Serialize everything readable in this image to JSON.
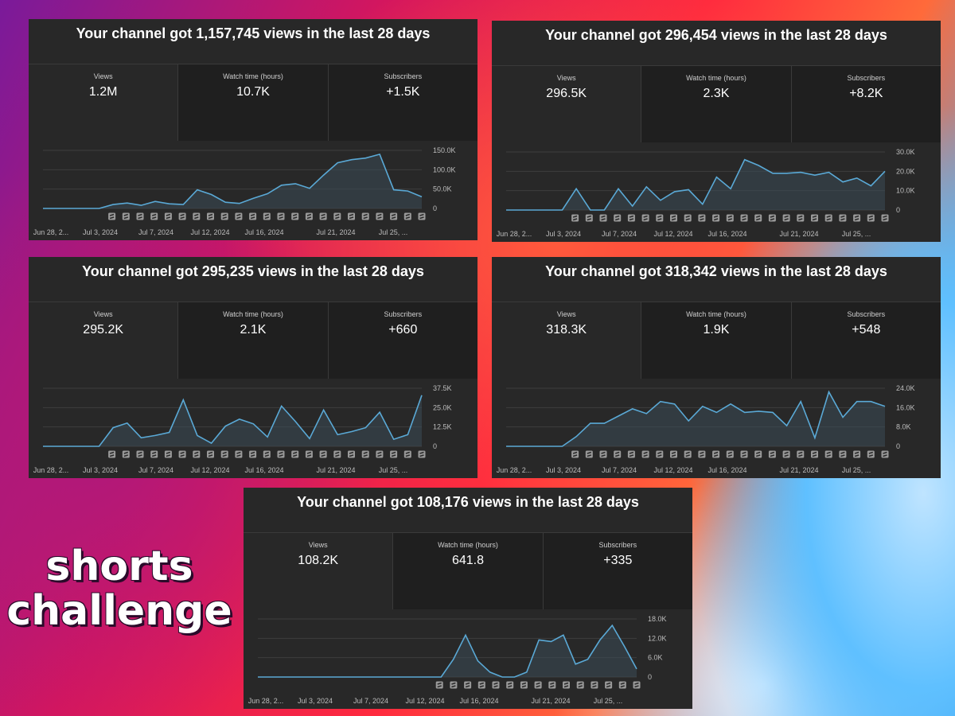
{
  "panels": [
    {
      "title": "Your channel got 1,157,745 views in the last 28 days",
      "metrics": [
        {
          "label": "Views",
          "value": "1.2M"
        },
        {
          "label": "Watch time (hours)",
          "value": "10.7K"
        },
        {
          "label": "Subscribers",
          "value": "+1.5K"
        }
      ]
    },
    {
      "title": "Your channel got 296,454 views in the last 28 days",
      "metrics": [
        {
          "label": "Views",
          "value": "296.5K"
        },
        {
          "label": "Watch time (hours)",
          "value": "2.3K"
        },
        {
          "label": "Subscribers",
          "value": "+8.2K"
        }
      ]
    },
    {
      "title": "Your channel got 295,235 views in the last 28 days",
      "metrics": [
        {
          "label": "Views",
          "value": "295.2K"
        },
        {
          "label": "Watch time (hours)",
          "value": "2.1K"
        },
        {
          "label": "Subscribers",
          "value": "+660"
        }
      ]
    },
    {
      "title": "Your channel got 318,342 views in the last 28 days",
      "metrics": [
        {
          "label": "Views",
          "value": "318.3K"
        },
        {
          "label": "Watch time (hours)",
          "value": "1.9K"
        },
        {
          "label": "Subscribers",
          "value": "+548"
        }
      ]
    },
    {
      "title": "Your channel got 108,176 views in the last 28 days",
      "metrics": [
        {
          "label": "Views",
          "value": "108.2K"
        },
        {
          "label": "Watch time (hours)",
          "value": "641.8"
        },
        {
          "label": "Subscribers",
          "value": "+335"
        }
      ]
    }
  ],
  "caption": {
    "line1": "shorts",
    "line2": "challenge"
  },
  "colors": {
    "line": "#5aa9d6",
    "panel_bg": "#282828",
    "grid": "#3e3e3e"
  },
  "chart_data": [
    {
      "type": "area",
      "x_ticks": [
        "Jun 28, 2...",
        "Jul 3, 2024",
        "Jul 7, 2024",
        "Jul 12, 2024",
        "Jul 16, 2024",
        "Jul 21, 2024",
        "Jul 25, ..."
      ],
      "y_ticks": [
        "150.0K",
        "100.0K",
        "50.0K",
        "0"
      ],
      "ylim": [
        0,
        150000
      ],
      "values": [
        0,
        0,
        0,
        0,
        0,
        10000,
        14000,
        8000,
        18000,
        12000,
        10000,
        48000,
        36000,
        16000,
        13000,
        26000,
        38000,
        60000,
        64000,
        52000,
        86000,
        118000,
        126000,
        130000,
        140000,
        48000,
        45000,
        30000
      ],
      "markers": 23
    },
    {
      "type": "area",
      "x_ticks": [
        "Jun 28, 2...",
        "Jul 3, 2024",
        "Jul 7, 2024",
        "Jul 12, 2024",
        "Jul 16, 2024",
        "Jul 21, 2024",
        "Jul 25, ..."
      ],
      "y_ticks": [
        "30.0K",
        "20.0K",
        "10.0K",
        "0"
      ],
      "ylim": [
        0,
        30000
      ],
      "values": [
        0,
        0,
        0,
        0,
        0,
        11000,
        0,
        0,
        11000,
        2000,
        12000,
        5000,
        9500,
        10500,
        3000,
        17000,
        11000,
        26000,
        23000,
        19000,
        19000,
        19500,
        18000,
        19500,
        14500,
        16500,
        12500,
        20000
      ],
      "markers": 23
    },
    {
      "type": "area",
      "x_ticks": [
        "Jun 28, 2...",
        "Jul 3, 2024",
        "Jul 7, 2024",
        "Jul 12, 2024",
        "Jul 16, 2024",
        "Jul 21, 2024",
        "Jul 25, ..."
      ],
      "y_ticks": [
        "37.5K",
        "25.0K",
        "12.5K",
        "0"
      ],
      "ylim": [
        0,
        37500
      ],
      "values": [
        0,
        0,
        0,
        0,
        0,
        12000,
        15000,
        5500,
        7000,
        9000,
        30000,
        7000,
        2000,
        13000,
        17500,
        14500,
        6000,
        26000,
        16000,
        5000,
        23500,
        7500,
        9500,
        12000,
        22000,
        4500,
        7500,
        33000
      ],
      "markers": 23
    },
    {
      "type": "area",
      "x_ticks": [
        "Jun 28, 2...",
        "Jul 3, 2024",
        "Jul 7, 2024",
        "Jul 12, 2024",
        "Jul 16, 2024",
        "Jul 21, 2024",
        "Jul 25, ..."
      ],
      "y_ticks": [
        "24.0K",
        "16.0K",
        "8.0K",
        "0"
      ],
      "ylim": [
        0,
        24000
      ],
      "values": [
        0,
        0,
        0,
        0,
        0,
        4000,
        9500,
        9500,
        12500,
        15500,
        13500,
        18500,
        17500,
        10500,
        16500,
        14000,
        17500,
        14000,
        14500,
        14000,
        8500,
        18500,
        3500,
        22500,
        12000,
        18500,
        18500,
        16500
      ],
      "markers": 23
    },
    {
      "type": "area",
      "x_ticks": [
        "Jun 28, 2...",
        "Jul 3, 2024",
        "Jul 7, 2024",
        "Jul 12, 2024",
        "Jul 16, 2024",
        "Jul 21, 2024",
        "Jul 25, ..."
      ],
      "y_ticks": [
        "18.0K",
        "12.0K",
        "6.0K",
        "0"
      ],
      "ylim": [
        0,
        18000
      ],
      "values": [
        0,
        0,
        0,
        0,
        0,
        0,
        0,
        0,
        0,
        0,
        0,
        0,
        0,
        0,
        0,
        0,
        5500,
        13000,
        5000,
        1500,
        0,
        0,
        1500,
        11500,
        11000,
        13000,
        4000,
        5500,
        11500,
        16000,
        9500,
        2500
      ],
      "markers": 15
    }
  ]
}
